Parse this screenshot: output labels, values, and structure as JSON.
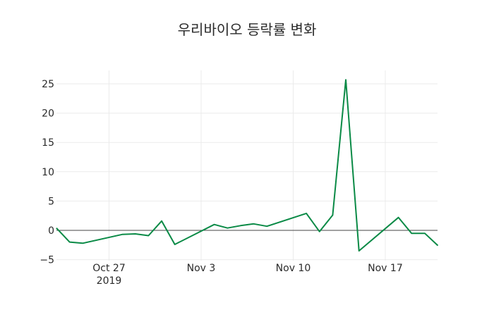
{
  "chart_data": {
    "type": "line",
    "title": "우리바이오 등락률 변화",
    "xlabel": "",
    "ylabel": "",
    "x": [
      "2019-10-23",
      "2019-10-24",
      "2019-10-25",
      "2019-10-28",
      "2019-10-29",
      "2019-10-30",
      "2019-10-31",
      "2019-11-01",
      "2019-11-04",
      "2019-11-05",
      "2019-11-06",
      "2019-11-07",
      "2019-11-08",
      "2019-11-11",
      "2019-11-12",
      "2019-11-13",
      "2019-11-14",
      "2019-11-15",
      "2019-11-18",
      "2019-11-19",
      "2019-11-20",
      "2019-11-21"
    ],
    "series": [
      {
        "name": "등락률",
        "color": "#0a8a46",
        "values": [
          0.4,
          -2.0,
          -2.2,
          -0.7,
          -0.6,
          -0.9,
          1.6,
          -2.4,
          1.0,
          0.4,
          0.8,
          1.1,
          0.7,
          2.9,
          -0.2,
          2.6,
          25.7,
          -3.5,
          2.2,
          -0.5,
          -0.5,
          -2.6
        ]
      }
    ],
    "ylim": [
      -5,
      27.5
    ],
    "xlim": [
      "2019-10-23",
      "2019-11-21"
    ],
    "y_ticks": [
      -5,
      0,
      5,
      10,
      15,
      20,
      25
    ],
    "y_tick_labels": [
      "−5",
      "0",
      "5",
      "10",
      "15",
      "20",
      "25"
    ],
    "x_ticks": [
      "2019-10-27",
      "2019-11-03",
      "2019-11-10",
      "2019-11-17"
    ],
    "x_tick_labels": [
      "Oct 27",
      "Nov 3",
      "Nov 10",
      "Nov 17"
    ],
    "x_tick_sublabel": "2019",
    "grid": true,
    "zero_line": true,
    "legend": null
  },
  "title": "우리바이오 등락률 변화",
  "colors": {
    "line": "#0a8a46",
    "grid": "#ebebeb",
    "zero_line": "#444444",
    "text": "#2a2a2a"
  }
}
